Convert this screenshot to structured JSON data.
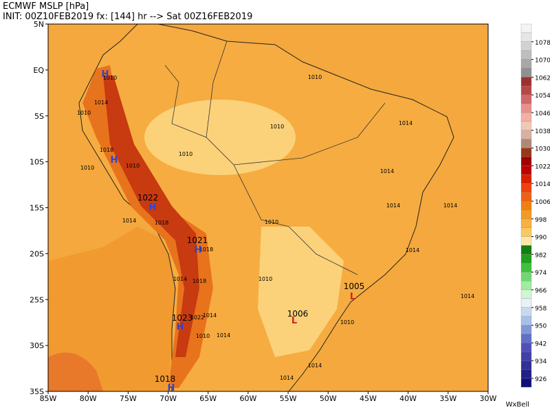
{
  "header": {
    "title": "ECMWF MSLP [hPa]",
    "subtitle": "INIT: 00Z10FEB2019 fx: [144] hr --> Sat 00Z16FEB2019"
  },
  "map": {
    "lat_labels": [
      "5N",
      "EQ",
      "5S",
      "10S",
      "15S",
      "20S",
      "25S",
      "30S",
      "35S"
    ],
    "lon_labels": [
      "85W",
      "80W",
      "75W",
      "70W",
      "65W",
      "60W",
      "55W",
      "50W",
      "45W",
      "40W",
      "35W",
      "30W"
    ],
    "contour_labels": [
      "1010",
      "1014",
      "1010",
      "1010",
      "1018",
      "1010",
      "1014",
      "1018",
      "1022",
      "1021",
      "1018",
      "1014",
      "1018",
      "1022",
      "1014",
      "1023",
      "1010",
      "1014",
      "1018",
      "1010",
      "1010",
      "1010",
      "1010",
      "1010",
      "1014",
      "1014",
      "1014",
      "1014",
      "1014",
      "1014",
      "1005",
      "1006",
      "1010",
      "1014",
      "1014"
    ],
    "pressure_centers": [
      "H",
      "H",
      "H",
      "H",
      "H",
      "H",
      "L",
      "L"
    ]
  },
  "colorbar": {
    "labels": [
      1078,
      1070,
      1062,
      1054,
      1046,
      1038,
      1030,
      1022,
      1014,
      1006,
      998,
      990,
      982,
      974,
      966,
      958,
      950,
      942,
      934,
      926
    ],
    "colors": [
      "#f4f4f4",
      "#e6e6e6",
      "#d2d2d2",
      "#bebebe",
      "#a8a8a8",
      "#909090",
      "#a03030",
      "#b84848",
      "#d06868",
      "#e89090",
      "#f4b0a0",
      "#f0c8b8",
      "#d8b0a0",
      "#b08878",
      "#983818",
      "#a00000",
      "#c00000",
      "#d82000",
      "#f04010",
      "#f06010",
      "#f08010",
      "#f59a20",
      "#f8b040",
      "#fbc860",
      "#fde8a8",
      "#108010",
      "#20a020",
      "#40c040",
      "#70d870",
      "#a0eca0",
      "#d0f8d0",
      "#e8f0f8",
      "#c8d8f0",
      "#a8c0e8",
      "#8098d8",
      "#6070c8",
      "#5050b8",
      "#4040a8",
      "#303098",
      "#202088",
      "#101078"
    ]
  },
  "footer": {
    "brand": "WxBell"
  }
}
